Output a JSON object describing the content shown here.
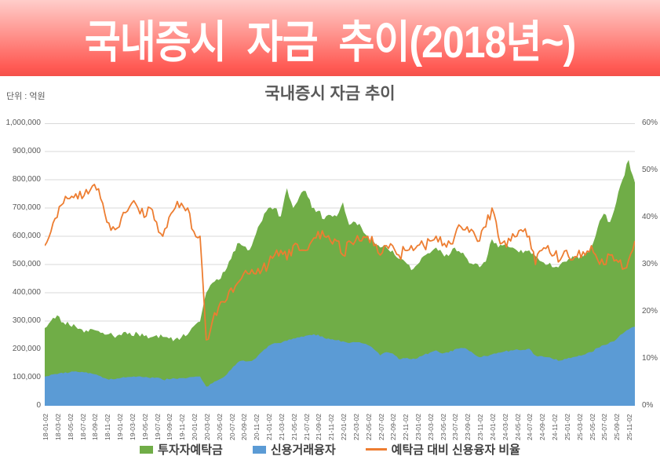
{
  "banner": {
    "title": "국내증시 자금 추이(2018년~)",
    "bg_gradient": [
      "#ffcdca",
      "#ff938d",
      "#ff5a54",
      "#f4504a"
    ],
    "text_color": "#ffffff"
  },
  "chart": {
    "unit_label": "단위 : 억원",
    "grid_color": "#D9D9D9",
    "axis_line_color": "#BFBFBF",
    "axis_text_color": "#595959",
    "y_left_ticks": [
      "0",
      "100,000",
      "200,000",
      "300,000",
      "400,000",
      "500,000",
      "600,000",
      "700,000",
      "800,000",
      "900,000",
      "1,000,000"
    ],
    "y_right_ticks": [
      "0%",
      "10%",
      "20%",
      "30%",
      "40%",
      "50%",
      "60%"
    ],
    "x_ticks": [
      "18-01-02",
      "18-03-02",
      "18-05-02",
      "18-07-02",
      "18-09-02",
      "18-11-02",
      "19-01-02",
      "19-03-02",
      "19-05-02",
      "19-07-02",
      "19-09-02",
      "19-11-02",
      "20-01-02",
      "20-03-02",
      "20-05-02",
      "20-07-02",
      "20-09-02",
      "20-11-02",
      "21-01-02",
      "21-03-02",
      "21-05-02",
      "21-07-02",
      "21-09-02",
      "21-11-02",
      "22-01-02",
      "22-03-02",
      "22-05-02",
      "22-07-02",
      "22-09-02",
      "22-11-02",
      "23-01-02",
      "23-03-02",
      "23-05-02",
      "23-07-02",
      "23-09-02",
      "23-11-02",
      "24-01-02",
      "24-03-02",
      "24-05-02",
      "24-07-02",
      "24-09-02",
      "24-11-02",
      "25-01-02",
      "25-03-02",
      "25-05-02",
      "25-07-02",
      "25-09-02",
      "25-11-02"
    ]
  },
  "chart_data": {
    "type": "area+line combo",
    "title": "국내증시 자금 추이",
    "y_left_label": "단위 : 억원",
    "y_left_range": [
      0,
      1000000
    ],
    "y_right_range": [
      0,
      60
    ],
    "grid": true,
    "legend_position": "bottom",
    "x_monthly": [
      "18-01",
      "18-02",
      "18-03",
      "18-04",
      "18-05",
      "18-06",
      "18-07",
      "18-08",
      "18-09",
      "18-10",
      "18-11",
      "18-12",
      "19-01",
      "19-02",
      "19-03",
      "19-04",
      "19-05",
      "19-06",
      "19-07",
      "19-08",
      "19-09",
      "19-10",
      "19-11",
      "19-12",
      "20-01",
      "20-02",
      "20-03",
      "20-04",
      "20-05",
      "20-06",
      "20-07",
      "20-08",
      "20-09",
      "20-10",
      "20-11",
      "20-12",
      "21-01",
      "21-02",
      "21-03",
      "21-04",
      "21-05",
      "21-06",
      "21-07",
      "21-08",
      "21-09",
      "21-10",
      "21-11",
      "21-12",
      "22-01",
      "22-02",
      "22-03",
      "22-04",
      "22-05",
      "22-06",
      "22-07",
      "22-08",
      "22-09",
      "22-10",
      "22-11",
      "22-12",
      "23-01",
      "23-02",
      "23-03",
      "23-04",
      "23-05",
      "23-06",
      "23-07",
      "23-08",
      "23-09",
      "23-10",
      "23-11",
      "23-12",
      "24-01",
      "24-02",
      "24-03",
      "24-04",
      "24-05",
      "24-06",
      "24-07",
      "24-08",
      "24-09",
      "24-10",
      "24-11",
      "24-12",
      "25-01",
      "25-02",
      "25-03",
      "25-04",
      "25-05",
      "25-06",
      "25-07",
      "25-08",
      "25-09",
      "25-10",
      "25-11",
      "25-12"
    ],
    "series": [
      {
        "name": "투자자예탁금",
        "type": "area",
        "axis": "left",
        "unit": "억원",
        "color": "#70AD47",
        "values": [
          275000,
          300000,
          320000,
          295000,
          285000,
          280000,
          270000,
          262000,
          268000,
          258000,
          252000,
          248000,
          252000,
          262000,
          248000,
          255000,
          246000,
          242000,
          250000,
          244000,
          238000,
          236000,
          242000,
          252000,
          282000,
          298000,
          400000,
          435000,
          445000,
          475000,
          520000,
          575000,
          565000,
          552000,
          608000,
          655000,
          700000,
          700000,
          670000,
          770000,
          700000,
          740000,
          760000,
          700000,
          690000,
          660000,
          675000,
          670000,
          720000,
          640000,
          650000,
          630000,
          600000,
          580000,
          560000,
          560000,
          550000,
          520000,
          510000,
          480000,
          500000,
          530000,
          540000,
          560000,
          540000,
          530000,
          560000,
          540000,
          520000,
          500000,
          490000,
          510000,
          590000,
          560000,
          570000,
          560000,
          550000,
          540000,
          550000,
          530000,
          510000,
          500000,
          490000,
          500000,
          510000,
          530000,
          520000,
          540000,
          560000,
          630000,
          680000,
          650000,
          720000,
          800000,
          870000,
          790000
        ]
      },
      {
        "name": "신용거래융자",
        "type": "area",
        "axis": "left",
        "unit": "억원",
        "color": "#5B9BD5",
        "values": [
          103000,
          110000,
          112000,
          115000,
          118000,
          122000,
          120000,
          115000,
          112000,
          105000,
          95000,
          94000,
          97000,
          100000,
          102000,
          104000,
          101000,
          98000,
          100000,
          92000,
          94000,
          96000,
          98000,
          99000,
          102000,
          104000,
          68000,
          80000,
          92000,
          105000,
          128000,
          152000,
          160000,
          158000,
          168000,
          192000,
          212000,
          222000,
          222000,
          230000,
          238000,
          242000,
          248000,
          250000,
          252000,
          240000,
          235000,
          232000,
          228000,
          222000,
          225000,
          222000,
          215000,
          200000,
          178000,
          190000,
          185000,
          165000,
          168000,
          165000,
          168000,
          180000,
          188000,
          196000,
          185000,
          188000,
          200000,
          205000,
          200000,
          185000,
          172000,
          176000,
          182000,
          188000,
          192000,
          196000,
          200000,
          198000,
          202000,
          178000,
          176000,
          172000,
          164000,
          160000,
          166000,
          172000,
          178000,
          182000,
          190000,
          205000,
          215000,
          225000,
          235000,
          255000,
          270000,
          280000
        ]
      },
      {
        "name": "예탁금 대비 신용융자 비율",
        "type": "line",
        "axis": "right",
        "unit": "%",
        "color": "#ED7D31",
        "values": [
          34,
          37,
          40,
          43,
          44,
          45,
          44,
          45,
          47,
          44,
          39,
          38,
          38,
          41,
          43,
          42,
          40,
          42,
          39,
          36,
          40,
          42,
          43,
          42,
          37,
          36,
          14,
          18,
          21,
          22,
          25,
          26,
          28,
          28,
          28,
          29,
          30,
          32,
          33,
          31,
          34,
          33,
          33,
          35,
          37,
          36,
          35,
          35,
          32,
          35,
          35,
          35,
          36,
          34,
          32,
          34,
          34,
          32,
          33,
          34,
          34,
          34,
          35,
          36,
          34,
          35,
          36,
          38,
          38,
          37,
          35,
          38,
          42,
          36,
          35,
          35,
          36,
          37,
          36,
          30,
          33,
          34,
          32,
          31,
          33,
          31,
          33,
          32,
          34,
          31,
          30,
          32,
          31,
          29,
          31,
          35
        ]
      }
    ]
  }
}
